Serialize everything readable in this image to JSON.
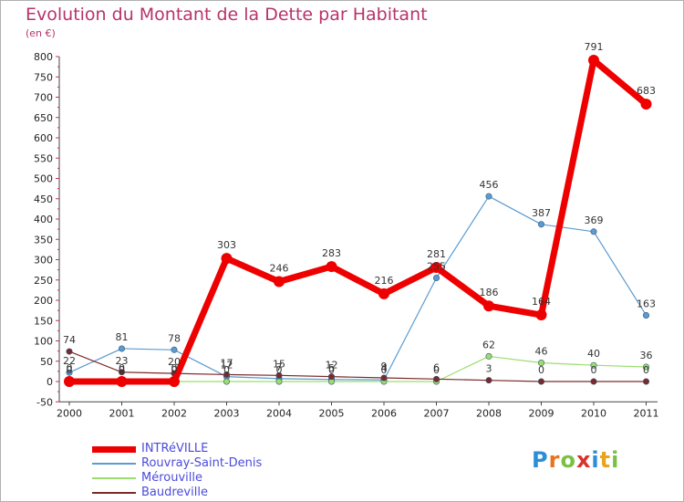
{
  "title": "Evolution du Montant de la Dette par Habitant",
  "subtitle": "(en €)",
  "logo": "Proxiti",
  "chart_data": {
    "type": "line",
    "x": [
      "2000",
      "2001",
      "2002",
      "2003",
      "2004",
      "2005",
      "2006",
      "2007",
      "2008",
      "2009",
      "2010",
      "2011"
    ],
    "ylim": [
      -50,
      800
    ],
    "yticks": [
      -50,
      0,
      50,
      100,
      150,
      200,
      250,
      300,
      350,
      400,
      450,
      500,
      550,
      600,
      650,
      700,
      750,
      800
    ],
    "grid": false,
    "legend_position": "bottom-left",
    "series": [
      {
        "name": "INTRéVILLE",
        "color": "#ee0000",
        "width": 7,
        "values": [
          0,
          0,
          0,
          303,
          246,
          283,
          216,
          281,
          186,
          164,
          791,
          683
        ],
        "labels": [
          "0",
          "0",
          "0",
          "303",
          "246",
          "283",
          "216",
          "281",
          "186",
          "164",
          "791",
          "683"
        ]
      },
      {
        "name": "Rouvray-Saint-Denis",
        "color": "#5b9bd0",
        "width": 1.2,
        "values": [
          22,
          81,
          78,
          12,
          7,
          5,
          4,
          255,
          456,
          387,
          369,
          163
        ],
        "labels": [
          "22",
          "81",
          "78",
          "12",
          "7",
          "5",
          "4",
          "255",
          "456",
          "387",
          "369",
          "163"
        ]
      },
      {
        "name": "Mérouville",
        "color": "#9bde6e",
        "width": 1.2,
        "values": [
          0,
          0,
          0,
          0,
          0,
          0,
          0,
          0,
          62,
          46,
          40,
          36
        ],
        "labels": [
          "0",
          "0",
          "0",
          "0",
          "0",
          "0",
          "0",
          "0",
          "62",
          "46",
          "40",
          "36"
        ]
      },
      {
        "name": "Baudreville",
        "color": "#7a2a2a",
        "width": 1.2,
        "values": [
          74,
          23,
          20,
          17,
          15,
          12,
          9,
          6,
          3,
          0,
          0,
          0
        ],
        "labels": [
          "74",
          "23",
          "20",
          "17",
          "15",
          "12",
          "9",
          "6",
          "3",
          "0",
          "0",
          "0"
        ]
      }
    ]
  }
}
